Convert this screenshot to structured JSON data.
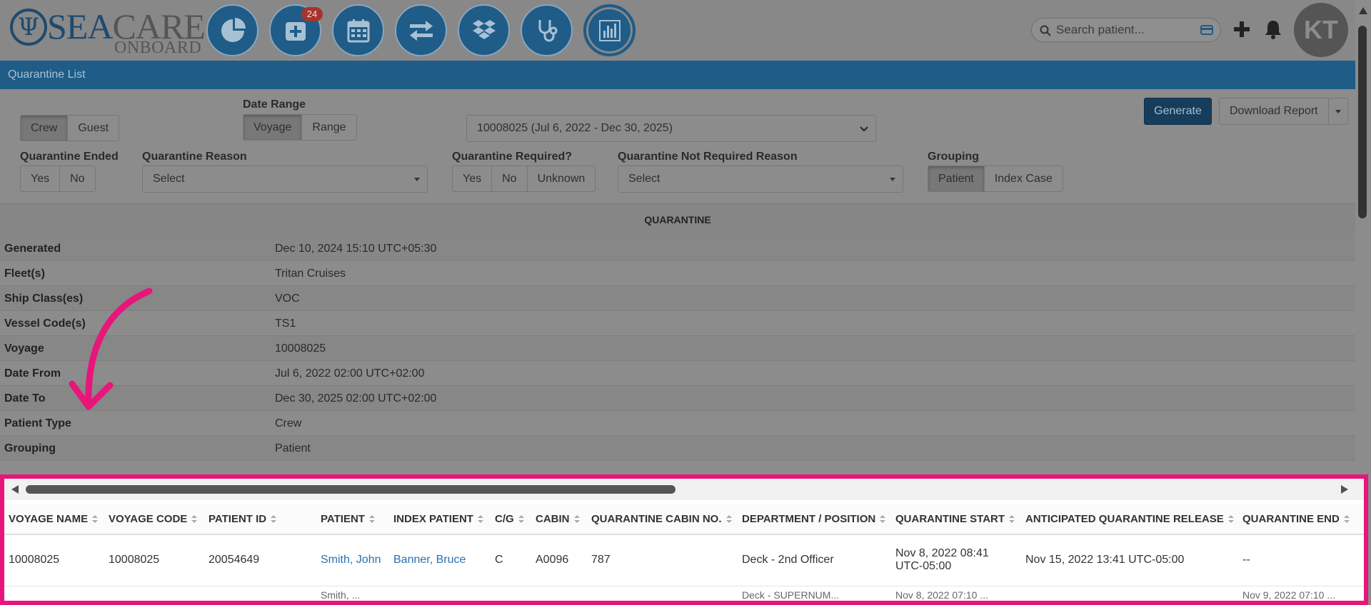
{
  "header": {
    "logo_main_a": "SEA",
    "logo_main_b": "CARE",
    "logo_sub": "ONBOARD",
    "nav_icons": [
      "dashboard-pie-icon",
      "add-medical-icon",
      "calendar-icon",
      "transfer-icon",
      "dropbox-icon",
      "stethoscope-icon",
      "reports-chart-icon"
    ],
    "add_badge": "24",
    "search_placeholder": "Search patient...",
    "avatar_initials": "KT"
  },
  "page_title": "Quarantine List",
  "filters": {
    "patient_type_options": [
      "Crew",
      "Guest"
    ],
    "patient_type_selected": "Crew",
    "date_range_label": "Date Range",
    "date_range_options": [
      "Voyage",
      "Range"
    ],
    "date_range_selected": "Voyage",
    "voyage_select_value": "10008025 (Jul 6, 2022 - Dec 30, 2025)",
    "quarantine_ended_label": "Quarantine Ended",
    "quarantine_ended_options": [
      "Yes",
      "No"
    ],
    "quarantine_reason_label": "Quarantine Reason",
    "quarantine_reason_value": "Select",
    "quarantine_required_label": "Quarantine Required?",
    "quarantine_required_options": [
      "Yes",
      "No",
      "Unknown"
    ],
    "not_required_reason_label": "Quarantine Not Required Reason",
    "not_required_reason_value": "Select",
    "grouping_label": "Grouping",
    "grouping_options": [
      "Patient",
      "Index Case"
    ],
    "grouping_selected": "Patient",
    "generate_label": "Generate",
    "download_label": "Download Report"
  },
  "summary": {
    "title": "QUARANTINE",
    "rows": [
      {
        "key": "Generated",
        "value": "Dec 10, 2024 15:10 UTC+05:30"
      },
      {
        "key": "Fleet(s)",
        "value": "Tritan Cruises"
      },
      {
        "key": "Ship Class(es)",
        "value": "VOC"
      },
      {
        "key": "Vessel Code(s)",
        "value": "TS1"
      },
      {
        "key": "Voyage",
        "value": "10008025"
      },
      {
        "key": "Date From",
        "value": "Jul 6, 2022 02:00 UTC+02:00"
      },
      {
        "key": "Date To",
        "value": "Dec 30, 2025 02:00 UTC+02:00"
      },
      {
        "key": "Patient Type",
        "value": "Crew"
      },
      {
        "key": "Grouping",
        "value": "Patient"
      }
    ]
  },
  "table": {
    "columns": [
      "VOYAGE NAME",
      "VOYAGE CODE",
      "PATIENT ID",
      "PATIENT",
      "INDEX PATIENT",
      "C/G",
      "CABIN",
      "QUARANTINE CABIN NO.",
      "DEPARTMENT / POSITION",
      "QUARANTINE START",
      "ANTICIPATED QUARANTINE RELEASE",
      "QUARANTINE END"
    ],
    "rows": [
      [
        "10008025",
        "10008025",
        "20054649",
        "Smith, John",
        "Banner, Bruce",
        "C",
        "A0096",
        "787",
        "Deck - 2nd Officer",
        "Nov 8, 2022 08:41 UTC-05:00",
        "Nov 15, 2022 13:41 UTC-05:00",
        "--"
      ]
    ],
    "partial_row": [
      "",
      "",
      "",
      "Smith, ...",
      "",
      "",
      "",
      "",
      "Deck - SUPERNUM...",
      "Nov 8, 2022 07:10 ...",
      "",
      "Nov 9, 2022 07:10 ..."
    ]
  },
  "colors": {
    "brand_blue": "#1f5c88",
    "highlight_pink": "#e8157a",
    "link_blue": "#2a6fb0"
  }
}
